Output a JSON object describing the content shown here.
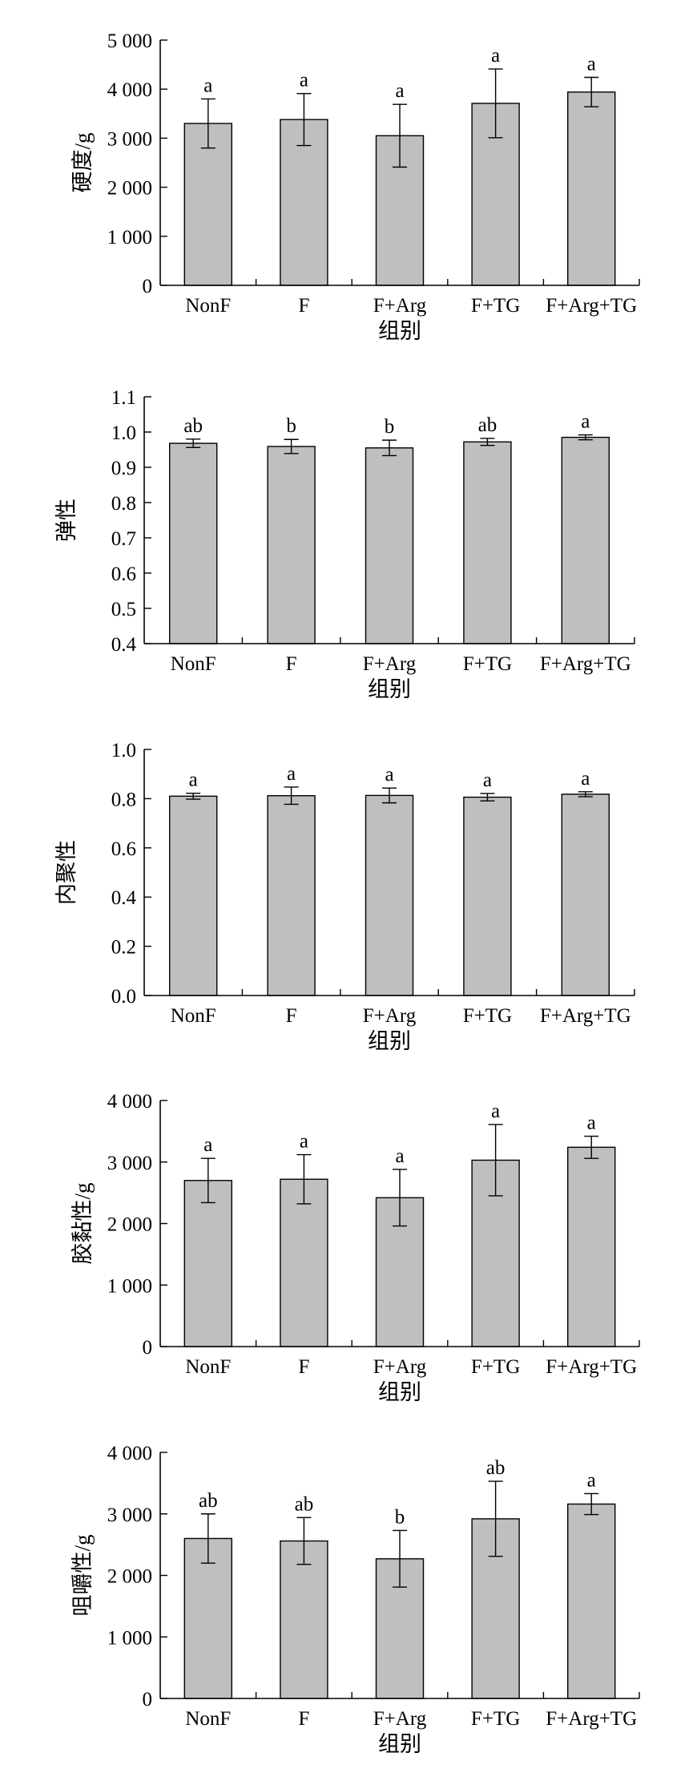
{
  "colors": {
    "bar_fill": "#bfbfbf",
    "bar_stroke": "#000000",
    "axis": "#000000"
  },
  "chart_data": [
    {
      "type": "bar",
      "xlabel": "组别",
      "ylabel": "硬度/g",
      "categories": [
        "NonF",
        "F",
        "F+Arg",
        "F+TG",
        "F+Arg+TG"
      ],
      "values": [
        3300,
        3380,
        3050,
        3710,
        3940
      ],
      "errors": [
        500,
        530,
        640,
        700,
        300
      ],
      "significance": [
        "a",
        "a",
        "a",
        "a",
        "a"
      ],
      "ylim": [
        0,
        5000
      ],
      "yticks": [
        0,
        1000,
        2000,
        3000,
        4000,
        5000
      ],
      "ytick_labels": [
        "0",
        "1 000",
        "2 000",
        "3 000",
        "4 000",
        "5 000"
      ],
      "grid": false
    },
    {
      "type": "bar",
      "xlabel": "组别",
      "ylabel": "弹性",
      "categories": [
        "NonF",
        "F",
        "F+Arg",
        "F+TG",
        "F+Arg+TG"
      ],
      "values": [
        0.968,
        0.959,
        0.955,
        0.972,
        0.985
      ],
      "errors": [
        0.012,
        0.02,
        0.022,
        0.01,
        0.007
      ],
      "significance": [
        "ab",
        "b",
        "b",
        "ab",
        "a"
      ],
      "ylim": [
        0.4,
        1.1
      ],
      "yticks": [
        0.4,
        0.5,
        0.6,
        0.7,
        0.8,
        0.9,
        1.0,
        1.1
      ],
      "ytick_labels": [
        "0.4",
        "0.5",
        "0.6",
        "0.7",
        "0.8",
        "0.9",
        "1.0",
        "1.1"
      ],
      "grid": false
    },
    {
      "type": "bar",
      "xlabel": "组别",
      "ylabel": "内聚性",
      "categories": [
        "NonF",
        "F",
        "F+Arg",
        "F+TG",
        "F+Arg+TG"
      ],
      "values": [
        0.81,
        0.812,
        0.813,
        0.806,
        0.818
      ],
      "errors": [
        0.012,
        0.035,
        0.03,
        0.015,
        0.01
      ],
      "significance": [
        "a",
        "a",
        "a",
        "a",
        "a"
      ],
      "ylim": [
        0,
        1.0
      ],
      "yticks": [
        0,
        0.2,
        0.4,
        0.6,
        0.8,
        1.0
      ],
      "ytick_labels": [
        "0.0",
        "0.2",
        "0.4",
        "0.6",
        "0.8",
        "1.0"
      ],
      "grid": false
    },
    {
      "type": "bar",
      "xlabel": "组别",
      "ylabel": "胶黏性/g",
      "categories": [
        "NonF",
        "F",
        "F+Arg",
        "F+TG",
        "F+Arg+TG"
      ],
      "values": [
        2700,
        2720,
        2420,
        3030,
        3240
      ],
      "errors": [
        360,
        400,
        460,
        580,
        180
      ],
      "significance": [
        "a",
        "a",
        "a",
        "a",
        "a"
      ],
      "ylim": [
        0,
        4000
      ],
      "yticks": [
        0,
        1000,
        2000,
        3000,
        4000
      ],
      "ytick_labels": [
        "0",
        "1 000",
        "2 000",
        "3 000",
        "4 000"
      ],
      "grid": false
    },
    {
      "type": "bar",
      "xlabel": "组别",
      "ylabel": "咀嚼性/g",
      "categories": [
        "NonF",
        "F",
        "F+Arg",
        "F+TG",
        "F+Arg+TG"
      ],
      "values": [
        2600,
        2560,
        2270,
        2920,
        3160
      ],
      "errors": [
        400,
        380,
        460,
        610,
        170
      ],
      "significance": [
        "ab",
        "ab",
        "b",
        "ab",
        "a"
      ],
      "ylim": [
        0,
        4000
      ],
      "yticks": [
        0,
        1000,
        2000,
        3000,
        4000
      ],
      "ytick_labels": [
        "0",
        "1 000",
        "2 000",
        "3 000",
        "4 000"
      ],
      "grid": false
    }
  ]
}
